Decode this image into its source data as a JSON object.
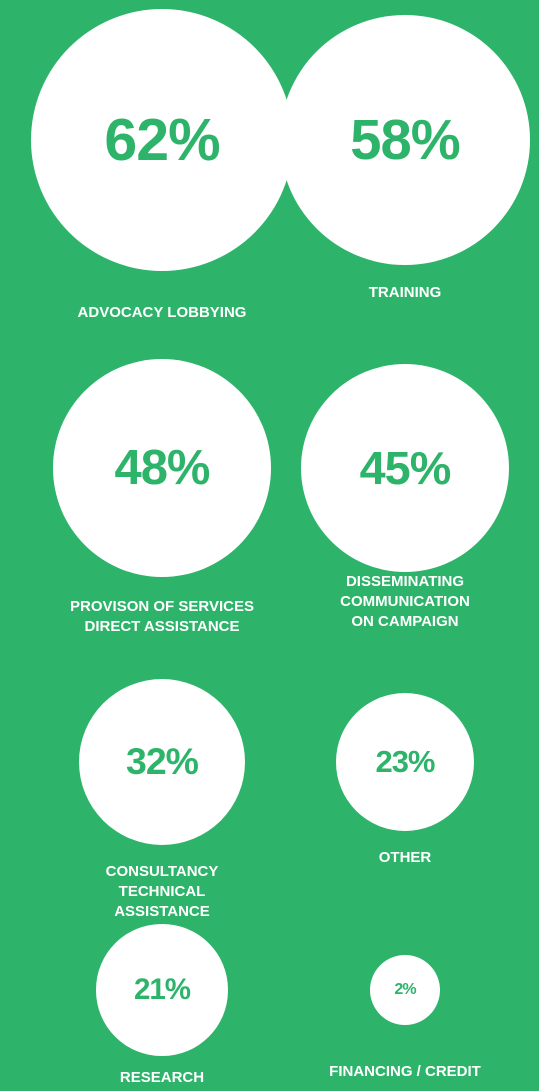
{
  "chart_data": {
    "type": "bubble",
    "categories": [
      "ADVOCACY LOBBYING",
      "TRAINING",
      "PROVISON OF SERVICES\nDIRECT ASSISTANCE",
      "DISSEMINATING\nCOMMUNICATION\nON CAMPAIGN",
      "CONSULTANCY\nTECHNICAL\nASSISTANCE",
      "OTHER",
      "RESEARCH",
      "FINANCING / CREDIT"
    ],
    "values": [
      62,
      58,
      48,
      45,
      32,
      23,
      21,
      2
    ],
    "value_labels": [
      "62%",
      "58%",
      "48%",
      "45%",
      "32%",
      "23%",
      "21%",
      "2%"
    ],
    "color": "#2db46a"
  }
}
